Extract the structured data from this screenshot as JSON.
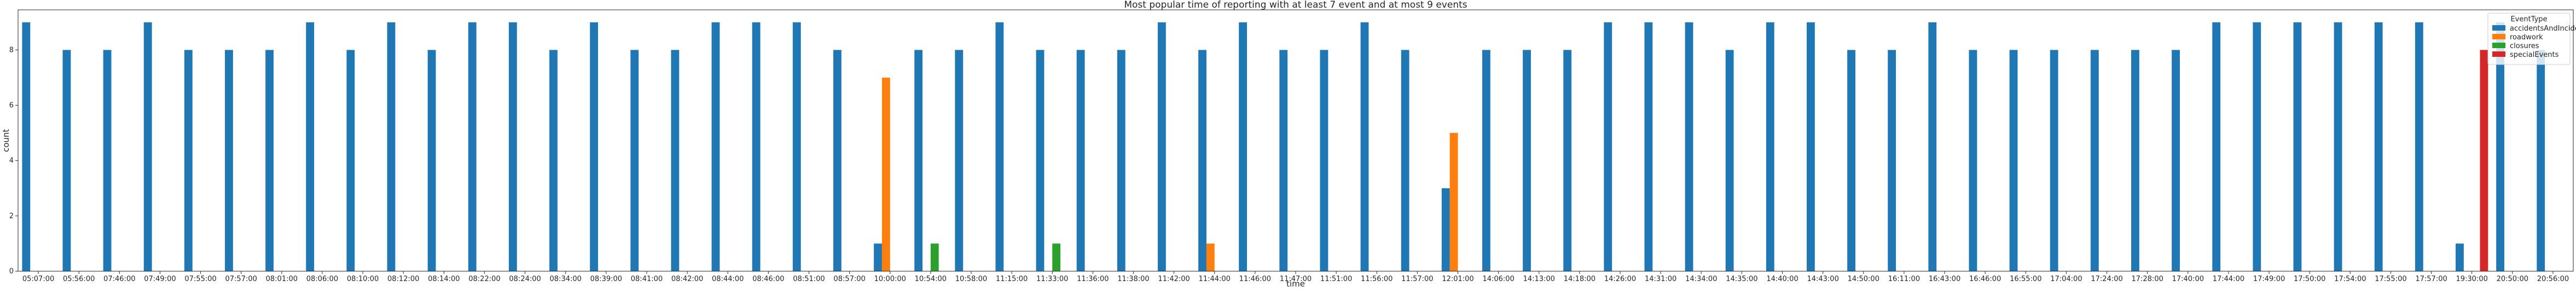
{
  "chart_data": {
    "type": "bar",
    "title": "Most popular time of reporting with at least 7 event and at most 9 events",
    "xlabel": "time",
    "ylabel": "count",
    "ylim": [
      0,
      9.45
    ],
    "yticks": [
      0,
      2,
      4,
      6,
      8
    ],
    "grid": false,
    "legend": {
      "title": "EventType",
      "placement": "top-right"
    },
    "categories": [
      "05:07:00",
      "05:56:00",
      "07:46:00",
      "07:49:00",
      "07:55:00",
      "07:57:00",
      "08:01:00",
      "08:06:00",
      "08:10:00",
      "08:12:00",
      "08:14:00",
      "08:22:00",
      "08:24:00",
      "08:34:00",
      "08:39:00",
      "08:41:00",
      "08:42:00",
      "08:44:00",
      "08:46:00",
      "08:51:00",
      "08:57:00",
      "10:00:00",
      "10:54:00",
      "10:58:00",
      "11:15:00",
      "11:33:00",
      "11:36:00",
      "11:38:00",
      "11:42:00",
      "11:44:00",
      "11:46:00",
      "11:47:00",
      "11:51:00",
      "11:56:00",
      "11:57:00",
      "12:01:00",
      "14:06:00",
      "14:13:00",
      "14:18:00",
      "14:26:00",
      "14:31:00",
      "14:34:00",
      "14:35:00",
      "14:40:00",
      "14:43:00",
      "14:50:00",
      "16:11:00",
      "16:43:00",
      "16:46:00",
      "16:55:00",
      "17:04:00",
      "17:24:00",
      "17:28:00",
      "17:40:00",
      "17:44:00",
      "17:49:00",
      "17:50:00",
      "17:54:00",
      "17:55:00",
      "17:57:00",
      "19:30:00",
      "20:50:00",
      "20:56:00"
    ],
    "series": [
      {
        "name": "accidentsAndIncidents",
        "color": "#1f77b4",
        "values": [
          9,
          8,
          8,
          9,
          8,
          8,
          8,
          9,
          8,
          9,
          8,
          9,
          9,
          8,
          9,
          8,
          8,
          9,
          9,
          9,
          8,
          1,
          8,
          8,
          9,
          8,
          8,
          8,
          9,
          8,
          9,
          8,
          8,
          9,
          8,
          3,
          8,
          8,
          8,
          9,
          9,
          9,
          8,
          9,
          9,
          8,
          8,
          9,
          8,
          8,
          8,
          8,
          8,
          8,
          9,
          9,
          9,
          9,
          9,
          9,
          1,
          9,
          8
        ]
      },
      {
        "name": "roadwork",
        "color": "#ff7f0e",
        "values": [
          0,
          0,
          0,
          0,
          0,
          0,
          0,
          0,
          0,
          0,
          0,
          0,
          0,
          0,
          0,
          0,
          0,
          0,
          0,
          0,
          0,
          7,
          0,
          0,
          0,
          0,
          0,
          0,
          0,
          1,
          0,
          0,
          0,
          0,
          0,
          5,
          0,
          0,
          0,
          0,
          0,
          0,
          0,
          0,
          0,
          0,
          0,
          0,
          0,
          0,
          0,
          0,
          0,
          0,
          0,
          0,
          0,
          0,
          0,
          0,
          0,
          0,
          0
        ]
      },
      {
        "name": "closures",
        "color": "#2ca02c",
        "values": [
          0,
          0,
          0,
          0,
          0,
          0,
          0,
          0,
          0,
          0,
          0,
          0,
          0,
          0,
          0,
          0,
          0,
          0,
          0,
          0,
          0,
          0,
          1,
          0,
          0,
          1,
          0,
          0,
          0,
          0,
          0,
          0,
          0,
          0,
          0,
          0,
          0,
          0,
          0,
          0,
          0,
          0,
          0,
          0,
          0,
          0,
          0,
          0,
          0,
          0,
          0,
          0,
          0,
          0,
          0,
          0,
          0,
          0,
          0,
          0,
          0,
          0,
          0
        ]
      },
      {
        "name": "specialEvents",
        "color": "#d62728",
        "values": [
          0,
          0,
          0,
          0,
          0,
          0,
          0,
          0,
          0,
          0,
          0,
          0,
          0,
          0,
          0,
          0,
          0,
          0,
          0,
          0,
          0,
          0,
          0,
          0,
          0,
          0,
          0,
          0,
          0,
          0,
          0,
          0,
          0,
          0,
          0,
          0,
          0,
          0,
          0,
          0,
          0,
          0,
          0,
          0,
          0,
          0,
          0,
          0,
          0,
          0,
          0,
          0,
          0,
          0,
          0,
          0,
          0,
          0,
          0,
          0,
          8,
          0,
          0
        ]
      }
    ]
  }
}
